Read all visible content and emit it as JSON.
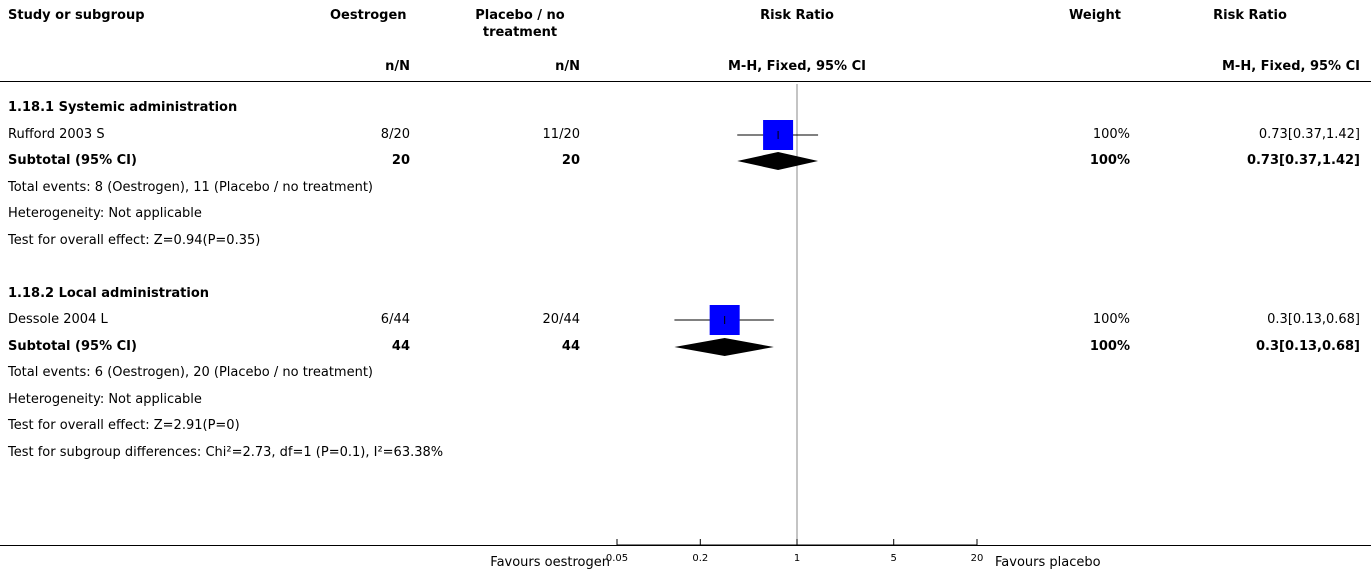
{
  "header": {
    "col_study": "Study or subgroup",
    "col_experimental": "Oestrogen",
    "col_control": "Placebo / no treatment",
    "col_control_line1": "Placebo / no",
    "col_control_line2": "treatment",
    "col_plot": "Risk Ratio",
    "col_weight": "Weight",
    "col_ratio": "Risk Ratio",
    "sub_experimental": "n/N",
    "sub_control": "n/N",
    "sub_plot": "M-H, Fixed, 95% CI",
    "sub_ratio": "M-H, Fixed, 95% CI"
  },
  "rows": [
    {
      "study": "1.18.1 Systemic administration",
      "kind": "heading"
    },
    {
      "study": "Rufford 2003 S",
      "experimental": "8/20",
      "control": "11/20",
      "weight": "100%",
      "ratio": "0.73[0.37,1.42]",
      "kind": "study"
    },
    {
      "study": "Subtotal (95% CI)",
      "experimental": "20",
      "control": "20",
      "weight": "100%",
      "ratio": "0.73[0.37,1.42]",
      "kind": "subtotal"
    },
    {
      "study": "Total events: 8 (Oestrogen), 11 (Placebo / no treatment)",
      "kind": "note"
    },
    {
      "study": "Heterogeneity: Not applicable",
      "kind": "note"
    },
    {
      "study": "Test for overall effect: Z=0.94(P=0.35)",
      "kind": "note"
    },
    {
      "study": "",
      "kind": "blank"
    },
    {
      "study": "1.18.2 Local administration",
      "kind": "heading"
    },
    {
      "study": "Dessole 2004 L",
      "experimental": "6/44",
      "control": "20/44",
      "weight": "100%",
      "ratio": "0.3[0.13,0.68]",
      "kind": "study"
    },
    {
      "study": "Subtotal (95% CI)",
      "experimental": "44",
      "control": "44",
      "weight": "100%",
      "ratio": "0.3[0.13,0.68]",
      "kind": "subtotal"
    },
    {
      "study": "Total events: 6 (Oestrogen), 20 (Placebo / no treatment)",
      "kind": "note"
    },
    {
      "study": "Heterogeneity: Not applicable",
      "kind": "note"
    },
    {
      "study": "Test for overall effect: Z=2.91(P=0)",
      "kind": "note"
    },
    {
      "study": "Test for subgroup differences: Chi²=2.73, df=1 (P=0.1), I²=63.38%",
      "kind": "note"
    }
  ],
  "footer": {
    "favours_left": "Favours oestrogen",
    "favours_right": "Favours placebo"
  },
  "chart_data": {
    "type": "forest",
    "scale": "log",
    "xlim": [
      0.05,
      20
    ],
    "null_line": 1,
    "x_ticks": [
      0.05,
      0.2,
      1,
      5,
      20
    ],
    "x_tick_labels": [
      "0.05",
      "0.2",
      "1",
      "5",
      "20"
    ],
    "favours_left": "Favours oestrogen",
    "favours_right": "Favours placebo",
    "marker_color": "#0000ff",
    "diamond_color": "#000000",
    "studies": [
      {
        "name": "Rufford 2003 S",
        "rr": 0.73,
        "lower": 0.37,
        "upper": 1.42,
        "weight": 100,
        "row": 1
      },
      {
        "name": "Dessole 2004 L",
        "rr": 0.3,
        "lower": 0.13,
        "upper": 0.68,
        "weight": 100,
        "row": 8
      }
    ],
    "subtotals": [
      {
        "name": "Subtotal (95% CI)",
        "rr": 0.73,
        "lower": 0.37,
        "upper": 1.42,
        "row": 2
      },
      {
        "name": "Subtotal (95% CI)",
        "rr": 0.3,
        "lower": 0.13,
        "upper": 0.68,
        "row": 9
      }
    ]
  }
}
